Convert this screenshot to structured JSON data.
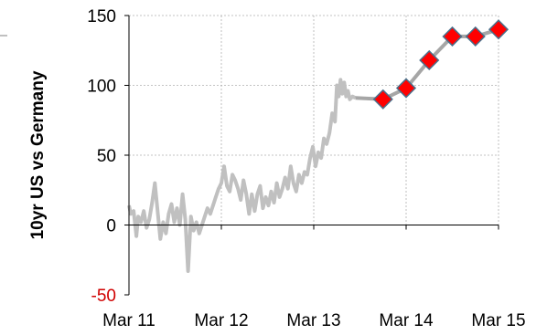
{
  "chart_data": {
    "type": "line",
    "title": "",
    "xlabel": "",
    "ylabel": "10yr US vs Germany",
    "ylim": [
      -50,
      150
    ],
    "yticks": [
      -50,
      0,
      50,
      100,
      150
    ],
    "xticks": [
      "Mar 11",
      "Mar 12",
      "Mar 13",
      "Mar 14",
      "Mar 15"
    ],
    "grid": true,
    "colors": {
      "history": "#c0c0c0",
      "forecast_marker": "#ff0000",
      "forecast_line": "#a6a6a6",
      "marker_edge": "#4a6f8a",
      "negative_tick": "#d00000",
      "grid": "#b0b0b0"
    },
    "series": [
      {
        "values": [
          [
            0,
            14
          ],
          [
            0.02,
            8
          ],
          [
            0.05,
            10
          ],
          [
            0.08,
            -8
          ],
          [
            0.1,
            6
          ],
          [
            0.13,
            2
          ],
          [
            0.16,
            10
          ],
          [
            0.19,
            -2
          ],
          [
            0.22,
            4
          ],
          [
            0.25,
            16
          ],
          [
            0.28,
            30
          ],
          [
            0.31,
            10
          ],
          [
            0.34,
            -10
          ],
          [
            0.37,
            2
          ],
          [
            0.4,
            -6
          ],
          [
            0.43,
            8
          ],
          [
            0.46,
            15
          ],
          [
            0.49,
            2
          ],
          [
            0.52,
            12
          ],
          [
            0.55,
            0
          ],
          [
            0.58,
            22
          ],
          [
            0.61,
            4
          ],
          [
            0.64,
            -33
          ],
          [
            0.67,
            6
          ],
          [
            0.7,
            -4
          ],
          [
            0.73,
            2
          ],
          [
            0.76,
            -6
          ],
          [
            0.79,
            0
          ],
          [
            0.82,
            6
          ],
          [
            0.85,
            12
          ],
          [
            0.88,
            8
          ],
          [
            0.91,
            14
          ],
          [
            0.94,
            20
          ],
          [
            0.97,
            26
          ],
          [
            1.0,
            30
          ],
          [
            1.03,
            42
          ],
          [
            1.06,
            28
          ],
          [
            1.09,
            24
          ],
          [
            1.12,
            36
          ],
          [
            1.15,
            32
          ],
          [
            1.18,
            26
          ],
          [
            1.21,
            18
          ],
          [
            1.24,
            32
          ],
          [
            1.27,
            22
          ],
          [
            1.3,
            8
          ],
          [
            1.33,
            22
          ],
          [
            1.36,
            10
          ],
          [
            1.39,
            22
          ],
          [
            1.42,
            28
          ],
          [
            1.45,
            12
          ],
          [
            1.48,
            20
          ],
          [
            1.51,
            14
          ],
          [
            1.54,
            24
          ],
          [
            1.57,
            16
          ],
          [
            1.6,
            30
          ],
          [
            1.63,
            20
          ],
          [
            1.66,
            26
          ],
          [
            1.69,
            34
          ],
          [
            1.72,
            26
          ],
          [
            1.75,
            42
          ],
          [
            1.78,
            30
          ],
          [
            1.81,
            24
          ],
          [
            1.84,
            36
          ],
          [
            1.87,
            30
          ],
          [
            1.9,
            38
          ],
          [
            1.93,
            36
          ],
          [
            1.96,
            48
          ],
          [
            1.99,
            56
          ],
          [
            2.02,
            42
          ],
          [
            2.05,
            52
          ],
          [
            2.08,
            48
          ],
          [
            2.11,
            62
          ],
          [
            2.14,
            58
          ],
          [
            2.17,
            66
          ],
          [
            2.2,
            80
          ],
          [
            2.23,
            74
          ],
          [
            2.25,
            100
          ],
          [
            2.27,
            92
          ],
          [
            2.29,
            104
          ],
          [
            2.31,
            94
          ],
          [
            2.33,
            102
          ],
          [
            2.35,
            92
          ],
          [
            2.37,
            96
          ],
          [
            2.39,
            90
          ],
          [
            2.42,
            92
          ],
          [
            2.45,
            91
          ]
        ]
      },
      {
        "values": [
          [
            2.75,
            90
          ],
          [
            3.0,
            98
          ],
          [
            3.25,
            118
          ],
          [
            3.5,
            135
          ],
          [
            3.75,
            135
          ],
          [
            4.0,
            140
          ]
        ]
      }
    ]
  }
}
